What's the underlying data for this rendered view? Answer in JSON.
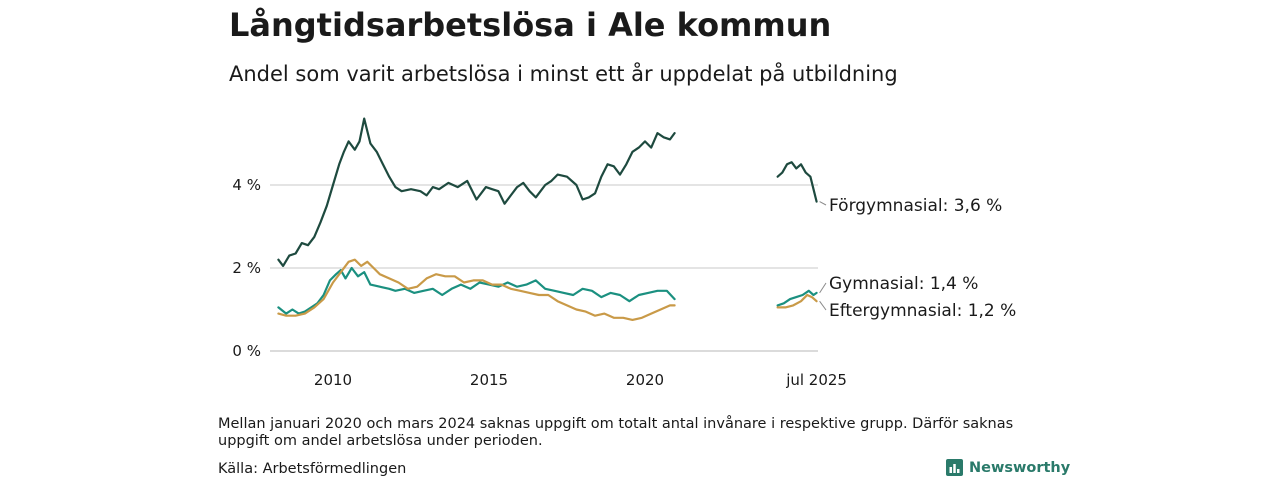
{
  "title": "Långtidsarbetslösa i Ale kommun",
  "subtitle": "Andel som varit arbetslösa i minst ett år uppdelat på utbildning",
  "note": "Mellan januari 2020 och mars 2024 saknas uppgift om totalt antal invånare i respektive grupp. Därför saknas uppgift om andel arbetslösa under perioden.",
  "source": "Källa: Arbetsförmedlingen",
  "brand": "Newsworthy",
  "chart_data": {
    "type": "line",
    "title": "Långtidsarbetslösa i Ale kommun",
    "subtitle": "Andel som varit arbetslösa i minst ett år uppdelat på utbildning",
    "xlabel": "",
    "ylabel": "",
    "ylim": [
      0,
      6
    ],
    "y_ticks": [
      0,
      2,
      4
    ],
    "y_tick_labels": [
      "0 %",
      "2 %",
      "4 %"
    ],
    "x_ticks": [
      2010,
      2015,
      2020,
      2025.5
    ],
    "x_tick_labels": [
      "2010",
      "2015",
      "2020",
      "jul 2025"
    ],
    "xlim": [
      2008.2,
      2025.6
    ],
    "grid": true,
    "legend": "direct labels at line ends",
    "series": [
      {
        "name": "Förgymnasial",
        "end_label": "Förgymnasial: 3,6 %",
        "color": "#1e4a3f",
        "segments": [
          [
            [
              2008.25,
              2.2
            ],
            [
              2008.4,
              2.05
            ],
            [
              2008.6,
              2.3
            ],
            [
              2008.8,
              2.35
            ],
            [
              2009.0,
              2.6
            ],
            [
              2009.2,
              2.55
            ],
            [
              2009.4,
              2.75
            ],
            [
              2009.6,
              3.1
            ],
            [
              2009.8,
              3.5
            ],
            [
              2010.0,
              4.0
            ],
            [
              2010.2,
              4.5
            ],
            [
              2010.35,
              4.8
            ],
            [
              2010.5,
              5.05
            ],
            [
              2010.7,
              4.85
            ],
            [
              2010.85,
              5.05
            ],
            [
              2011.0,
              5.6
            ],
            [
              2011.2,
              5.0
            ],
            [
              2011.4,
              4.8
            ],
            [
              2011.6,
              4.5
            ],
            [
              2011.8,
              4.2
            ],
            [
              2012.0,
              3.95
            ],
            [
              2012.2,
              3.85
            ],
            [
              2012.5,
              3.9
            ],
            [
              2012.8,
              3.85
            ],
            [
              2013.0,
              3.75
            ],
            [
              2013.2,
              3.95
            ],
            [
              2013.4,
              3.9
            ],
            [
              2013.7,
              4.05
            ],
            [
              2014.0,
              3.95
            ],
            [
              2014.3,
              4.1
            ],
            [
              2014.6,
              3.65
            ],
            [
              2014.9,
              3.95
            ],
            [
              2015.1,
              3.9
            ],
            [
              2015.3,
              3.85
            ],
            [
              2015.5,
              3.55
            ],
            [
              2015.7,
              3.75
            ],
            [
              2015.9,
              3.95
            ],
            [
              2016.1,
              4.05
            ],
            [
              2016.3,
              3.85
            ],
            [
              2016.5,
              3.7
            ],
            [
              2016.8,
              4.0
            ],
            [
              2017.0,
              4.1
            ],
            [
              2017.2,
              4.25
            ],
            [
              2017.5,
              4.2
            ],
            [
              2017.8,
              4.0
            ],
            [
              2018.0,
              3.65
            ],
            [
              2018.2,
              3.7
            ],
            [
              2018.4,
              3.8
            ],
            [
              2018.6,
              4.2
            ],
            [
              2018.8,
              4.5
            ],
            [
              2019.0,
              4.45
            ],
            [
              2019.2,
              4.25
            ],
            [
              2019.4,
              4.5
            ],
            [
              2019.6,
              4.8
            ],
            [
              2019.8,
              4.9
            ],
            [
              2020.0,
              5.05
            ],
            [
              2020.2,
              4.9
            ],
            [
              2020.4,
              5.25
            ],
            [
              2020.6,
              5.15
            ],
            [
              2020.8,
              5.1
            ],
            [
              2020.95,
              5.25
            ]
          ],
          [
            [
              2024.25,
              4.2
            ],
            [
              2024.4,
              4.3
            ],
            [
              2024.55,
              4.5
            ],
            [
              2024.7,
              4.55
            ],
            [
              2024.85,
              4.4
            ],
            [
              2025.0,
              4.5
            ],
            [
              2025.15,
              4.3
            ],
            [
              2025.3,
              4.2
            ],
            [
              2025.4,
              3.9
            ],
            [
              2025.5,
              3.6
            ]
          ]
        ]
      },
      {
        "name": "Gymnasial",
        "end_label": "Gymnasial: 1,4 %",
        "color": "#1b9080",
        "segments": [
          [
            [
              2008.25,
              1.05
            ],
            [
              2008.5,
              0.9
            ],
            [
              2008.7,
              1.0
            ],
            [
              2008.9,
              0.9
            ],
            [
              2009.1,
              0.95
            ],
            [
              2009.3,
              1.05
            ],
            [
              2009.5,
              1.15
            ],
            [
              2009.7,
              1.35
            ],
            [
              2009.9,
              1.7
            ],
            [
              2010.1,
              1.85
            ],
            [
              2010.25,
              1.95
            ],
            [
              2010.4,
              1.75
            ],
            [
              2010.6,
              2.0
            ],
            [
              2010.8,
              1.8
            ],
            [
              2011.0,
              1.9
            ],
            [
              2011.2,
              1.6
            ],
            [
              2011.5,
              1.55
            ],
            [
              2011.8,
              1.5
            ],
            [
              2012.0,
              1.45
            ],
            [
              2012.3,
              1.5
            ],
            [
              2012.6,
              1.4
            ],
            [
              2012.9,
              1.45
            ],
            [
              2013.2,
              1.5
            ],
            [
              2013.5,
              1.35
            ],
            [
              2013.8,
              1.5
            ],
            [
              2014.1,
              1.6
            ],
            [
              2014.4,
              1.5
            ],
            [
              2014.7,
              1.65
            ],
            [
              2015.0,
              1.6
            ],
            [
              2015.3,
              1.55
            ],
            [
              2015.6,
              1.65
            ],
            [
              2015.9,
              1.55
            ],
            [
              2016.2,
              1.6
            ],
            [
              2016.5,
              1.7
            ],
            [
              2016.8,
              1.5
            ],
            [
              2017.1,
              1.45
            ],
            [
              2017.4,
              1.4
            ],
            [
              2017.7,
              1.35
            ],
            [
              2018.0,
              1.5
            ],
            [
              2018.3,
              1.45
            ],
            [
              2018.6,
              1.3
            ],
            [
              2018.9,
              1.4
            ],
            [
              2019.2,
              1.35
            ],
            [
              2019.5,
              1.2
            ],
            [
              2019.8,
              1.35
            ],
            [
              2020.1,
              1.4
            ],
            [
              2020.4,
              1.45
            ],
            [
              2020.7,
              1.45
            ],
            [
              2020.95,
              1.25
            ]
          ],
          [
            [
              2024.25,
              1.1
            ],
            [
              2024.45,
              1.15
            ],
            [
              2024.65,
              1.25
            ],
            [
              2024.85,
              1.3
            ],
            [
              2025.05,
              1.35
            ],
            [
              2025.25,
              1.45
            ],
            [
              2025.4,
              1.35
            ],
            [
              2025.5,
              1.4
            ]
          ]
        ]
      },
      {
        "name": "Eftergymnasial",
        "end_label": "Eftergymnasial: 1,2 %",
        "color": "#c99a48",
        "segments": [
          [
            [
              2008.25,
              0.9
            ],
            [
              2008.5,
              0.85
            ],
            [
              2008.8,
              0.85
            ],
            [
              2009.1,
              0.9
            ],
            [
              2009.4,
              1.05
            ],
            [
              2009.7,
              1.25
            ],
            [
              2010.0,
              1.65
            ],
            [
              2010.3,
              1.95
            ],
            [
              2010.5,
              2.15
            ],
            [
              2010.7,
              2.2
            ],
            [
              2010.9,
              2.05
            ],
            [
              2011.1,
              2.15
            ],
            [
              2011.3,
              2.0
            ],
            [
              2011.5,
              1.85
            ],
            [
              2011.8,
              1.75
            ],
            [
              2012.1,
              1.65
            ],
            [
              2012.4,
              1.5
            ],
            [
              2012.7,
              1.55
            ],
            [
              2013.0,
              1.75
            ],
            [
              2013.3,
              1.85
            ],
            [
              2013.6,
              1.8
            ],
            [
              2013.9,
              1.8
            ],
            [
              2014.2,
              1.65
            ],
            [
              2014.5,
              1.7
            ],
            [
              2014.8,
              1.7
            ],
            [
              2015.1,
              1.6
            ],
            [
              2015.4,
              1.6
            ],
            [
              2015.7,
              1.5
            ],
            [
              2016.0,
              1.45
            ],
            [
              2016.3,
              1.4
            ],
            [
              2016.6,
              1.35
            ],
            [
              2016.9,
              1.35
            ],
            [
              2017.2,
              1.2
            ],
            [
              2017.5,
              1.1
            ],
            [
              2017.8,
              1.0
            ],
            [
              2018.1,
              0.95
            ],
            [
              2018.4,
              0.85
            ],
            [
              2018.7,
              0.9
            ],
            [
              2019.0,
              0.8
            ],
            [
              2019.3,
              0.8
            ],
            [
              2019.6,
              0.75
            ],
            [
              2019.9,
              0.8
            ],
            [
              2020.2,
              0.9
            ],
            [
              2020.5,
              1.0
            ],
            [
              2020.8,
              1.1
            ],
            [
              2020.95,
              1.1
            ]
          ],
          [
            [
              2024.25,
              1.05
            ],
            [
              2024.5,
              1.05
            ],
            [
              2024.75,
              1.1
            ],
            [
              2025.0,
              1.2
            ],
            [
              2025.2,
              1.35
            ],
            [
              2025.35,
              1.3
            ],
            [
              2025.5,
              1.2
            ]
          ]
        ]
      }
    ]
  }
}
